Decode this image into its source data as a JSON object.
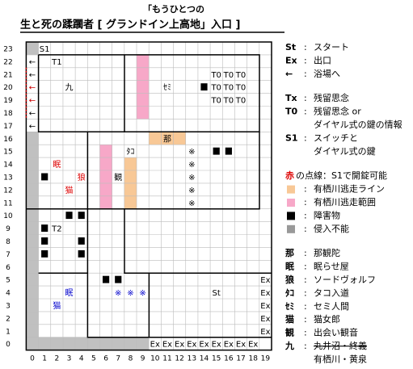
{
  "header": {
    "line1": "「もうひとつの",
    "line2": "生と死の蹂躙者 [ グランドイン上高地」入口 ]"
  },
  "map": {
    "rows": [
      23,
      22,
      21,
      20,
      19,
      18,
      17,
      16,
      15,
      14,
      13,
      12,
      11,
      10,
      9,
      8,
      7,
      6,
      5,
      4,
      3,
      2,
      1,
      0
    ],
    "cols": [
      0,
      1,
      2,
      3,
      4,
      5,
      6,
      7,
      8,
      9,
      10,
      11,
      12,
      13,
      14,
      15,
      16,
      17,
      18,
      19
    ],
    "shade": [
      {
        "color": "#c0c0c0",
        "cells": [
          [
            0,
            23
          ],
          [
            0,
            16
          ],
          [
            0,
            15
          ],
          [
            0,
            14
          ],
          [
            0,
            13
          ],
          [
            0,
            12
          ],
          [
            0,
            11
          ],
          [
            0,
            10
          ],
          [
            0,
            9
          ],
          [
            0,
            8
          ],
          [
            0,
            7
          ],
          [
            0,
            6
          ],
          [
            0,
            5
          ],
          [
            0,
            4
          ],
          [
            0,
            3
          ],
          [
            0,
            2
          ],
          [
            0,
            1
          ],
          [
            0,
            0
          ],
          [
            1,
            0
          ],
          [
            2,
            0
          ],
          [
            3,
            0
          ],
          [
            4,
            0
          ],
          [
            5,
            0
          ],
          [
            6,
            0
          ],
          [
            7,
            0
          ],
          [
            8,
            0
          ],
          [
            9,
            0
          ]
        ]
      },
      {
        "color": "#f7a8c8",
        "cells": [
          [
            9,
            22
          ],
          [
            9,
            21
          ],
          [
            9,
            20
          ],
          [
            9,
            19
          ],
          [
            9,
            18
          ],
          [
            6,
            15
          ],
          [
            6,
            14
          ],
          [
            6,
            13
          ],
          [
            6,
            12
          ],
          [
            6,
            11
          ]
        ]
      },
      {
        "color": "#f8c896",
        "cells": [
          [
            10,
            16
          ],
          [
            11,
            16
          ],
          [
            12,
            16
          ],
          [
            8,
            14
          ],
          [
            8,
            13
          ],
          [
            8,
            12
          ],
          [
            8,
            11
          ]
        ]
      }
    ],
    "blocks": [
      [
        14,
        20
      ],
      [
        15,
        15
      ],
      [
        16,
        15
      ],
      [
        1,
        13
      ],
      [
        3,
        10
      ],
      [
        4,
        10
      ],
      [
        1,
        9
      ],
      [
        1,
        8
      ],
      [
        4,
        8
      ],
      [
        1,
        7
      ],
      [
        4,
        7
      ],
      [
        6,
        5
      ],
      [
        7,
        5
      ]
    ],
    "cells": [
      {
        "col": 1,
        "row": 23,
        "text": "S1",
        "color": "#000"
      },
      {
        "col": 2,
        "row": 22,
        "text": "T1",
        "color": "#000"
      },
      {
        "col": 3,
        "row": 20,
        "text": "九",
        "color": "#000"
      },
      {
        "col": 11,
        "row": 20,
        "text": "ｾﾐ",
        "color": "#000"
      },
      {
        "col": 15,
        "row": 21,
        "text": "T0",
        "color": "#000"
      },
      {
        "col": 16,
        "row": 21,
        "text": "T0",
        "color": "#000"
      },
      {
        "col": 17,
        "row": 21,
        "text": "T0",
        "color": "#000"
      },
      {
        "col": 15,
        "row": 20,
        "text": "T0",
        "color": "#000"
      },
      {
        "col": 16,
        "row": 20,
        "text": "T0",
        "color": "#000"
      },
      {
        "col": 17,
        "row": 20,
        "text": "T0",
        "color": "#000"
      },
      {
        "col": 15,
        "row": 19,
        "text": "T0",
        "color": "#000"
      },
      {
        "col": 16,
        "row": 19,
        "text": "T0",
        "color": "#000"
      },
      {
        "col": 17,
        "row": 19,
        "text": "T0",
        "color": "#000"
      },
      {
        "col": 0,
        "row": 22,
        "text": "←",
        "color": "#000"
      },
      {
        "col": 0,
        "row": 21,
        "text": "←",
        "color": "#000"
      },
      {
        "col": 0,
        "row": 20,
        "text": "←",
        "color": "#c00"
      },
      {
        "col": 0,
        "row": 19,
        "text": "←",
        "color": "#c00"
      },
      {
        "col": 0,
        "row": 18,
        "text": "←",
        "color": "#000"
      },
      {
        "col": 0,
        "row": 17,
        "text": "←",
        "color": "#000"
      },
      {
        "col": 11,
        "row": 16,
        "text": "那",
        "color": "#000"
      },
      {
        "col": 8,
        "row": 15,
        "text": "ﾀｺ",
        "color": "#000"
      },
      {
        "col": 13,
        "row": 15,
        "text": "※",
        "color": "#000"
      },
      {
        "col": 13,
        "row": 14,
        "text": "※",
        "color": "#000"
      },
      {
        "col": 13,
        "row": 13,
        "text": "※",
        "color": "#000"
      },
      {
        "col": 13,
        "row": 12,
        "text": "※",
        "color": "#000"
      },
      {
        "col": 13,
        "row": 11,
        "text": "※",
        "color": "#000"
      },
      {
        "col": 2,
        "row": 14,
        "text": "眠",
        "color": "#d00"
      },
      {
        "col": 4,
        "row": 13,
        "text": "狼",
        "color": "#d00"
      },
      {
        "col": 7,
        "row": 13,
        "text": "観",
        "color": "#000"
      },
      {
        "col": 3,
        "row": 12,
        "text": "猫",
        "color": "#d00"
      },
      {
        "col": 2,
        "row": 9,
        "text": "T2",
        "color": "#000"
      },
      {
        "col": 3,
        "row": 4,
        "text": "眠",
        "color": "#00c"
      },
      {
        "col": 2,
        "row": 3,
        "text": "猫",
        "color": "#00c"
      },
      {
        "col": 7,
        "row": 4,
        "text": "※",
        "color": "#00c"
      },
      {
        "col": 8,
        "row": 4,
        "text": "※",
        "color": "#00c"
      },
      {
        "col": 9,
        "row": 4,
        "text": "※",
        "color": "#00c"
      },
      {
        "col": 15,
        "row": 4,
        "text": "St",
        "color": "#000"
      },
      {
        "col": 19,
        "row": 5,
        "text": "Ex",
        "color": "#000"
      },
      {
        "col": 19,
        "row": 4,
        "text": "Ex",
        "color": "#000"
      },
      {
        "col": 19,
        "row": 3,
        "text": "Ex",
        "color": "#000"
      },
      {
        "col": 19,
        "row": 2,
        "text": "Ex",
        "color": "#000"
      },
      {
        "col": 19,
        "row": 1,
        "text": "Ex",
        "color": "#000"
      },
      {
        "col": 10,
        "row": 0,
        "text": "Ex",
        "color": "#000"
      },
      {
        "col": 11,
        "row": 0,
        "text": "Ex",
        "color": "#000"
      },
      {
        "col": 12,
        "row": 0,
        "text": "Ex",
        "color": "#000"
      },
      {
        "col": 13,
        "row": 0,
        "text": "Ex",
        "color": "#000"
      },
      {
        "col": 14,
        "row": 0,
        "text": "Ex",
        "color": "#000"
      },
      {
        "col": 15,
        "row": 0,
        "text": "Ex",
        "color": "#000"
      },
      {
        "col": 16,
        "row": 0,
        "text": "Ex",
        "color": "#000"
      },
      {
        "col": 17,
        "row": 0,
        "text": "Ex",
        "color": "#000"
      },
      {
        "col": 18,
        "row": 0,
        "text": "Ex",
        "color": "#000"
      }
    ]
  },
  "separator": ":",
  "legend": [
    {
      "key": "St",
      "text": "スタート"
    },
    {
      "key": "Ex",
      "text": "出口"
    },
    {
      "key": "←",
      "text": "浴場へ"
    },
    null,
    {
      "key": "Tx",
      "text": "残留思念"
    },
    {
      "key": "T0",
      "text": "残留思念 or"
    },
    {
      "text": "ダイヤル式の鍵の情報"
    },
    {
      "key": "S1",
      "text": "スイッチと"
    },
    {
      "text": "ダイヤル式の鍵"
    },
    null,
    {
      "key": "赤",
      "keycolor": "#d00",
      "text": "の点線：S1で開錠可能",
      "nosep": true
    },
    {
      "swatch": "#f8c896",
      "text": "有栖川逃走ライン"
    },
    {
      "swatch": "#f7a8c8",
      "text": "有栖川逃走範囲"
    },
    {
      "swatch": "#000",
      "text": "障害物"
    },
    {
      "swatch": "#999",
      "text": "侵入不能"
    },
    null,
    {
      "key": "那",
      "text": "那観陀"
    },
    {
      "key": "眠",
      "text": "眠らせ屋"
    },
    {
      "key": "狼",
      "text": "ソードヴォルフ"
    },
    {
      "key": "ﾀｺ",
      "text": "タコ入道"
    },
    {
      "key": "ｾﾐ",
      "text": "セミ人間"
    },
    {
      "key": "猫",
      "text": "猫女郎"
    },
    {
      "key": "観",
      "text": "出会い観音"
    },
    {
      "key": "九",
      "text": "丸井沼・終義",
      "strike": true
    },
    {
      "text": "有栖川・黄泉"
    }
  ]
}
